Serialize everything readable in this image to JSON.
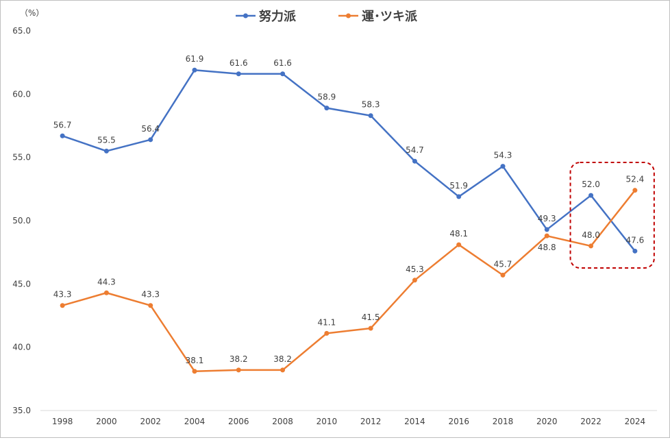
{
  "chart_data": {
    "type": "line",
    "ylabel": "（%）",
    "ylim": [
      35.0,
      65.0
    ],
    "yticks": [
      "35.0",
      "40.0",
      "45.0",
      "50.0",
      "55.0",
      "60.0",
      "65.0"
    ],
    "categories": [
      "1998",
      "2000",
      "2002",
      "2004",
      "2006",
      "2008",
      "2010",
      "2012",
      "2014",
      "2016",
      "2018",
      "2020",
      "2022",
      "2024"
    ],
    "grid": false,
    "legend_position": "top-center",
    "series": [
      {
        "name": "努力派",
        "color": "#4472C4",
        "values": [
          56.7,
          55.5,
          56.4,
          61.9,
          61.6,
          61.6,
          58.9,
          58.3,
          54.7,
          51.9,
          54.3,
          49.3,
          52.0,
          47.6
        ],
        "labels": [
          "56.7",
          "55.5",
          "56.4",
          "61.9",
          "61.6",
          "61.6",
          "58.9",
          "58.3",
          "54.7",
          "51.9",
          "54.3",
          "49.3",
          "52.0",
          "47.6"
        ]
      },
      {
        "name": "運･ツキ派",
        "color": "#ED7D31",
        "values": [
          43.3,
          44.3,
          43.3,
          38.1,
          38.2,
          38.2,
          41.1,
          41.5,
          45.3,
          48.1,
          45.7,
          48.8,
          48.0,
          52.4
        ],
        "labels": [
          "43.3",
          "44.3",
          "43.3",
          "38.1",
          "38.2",
          "38.2",
          "41.1",
          "41.5",
          "45.3",
          "48.1",
          "45.7",
          "48.8",
          "48.0",
          "52.4"
        ]
      }
    ],
    "highlight": {
      "categories": [
        "2022",
        "2024"
      ],
      "color": "#C00000",
      "style": "dashed rounded box"
    }
  }
}
